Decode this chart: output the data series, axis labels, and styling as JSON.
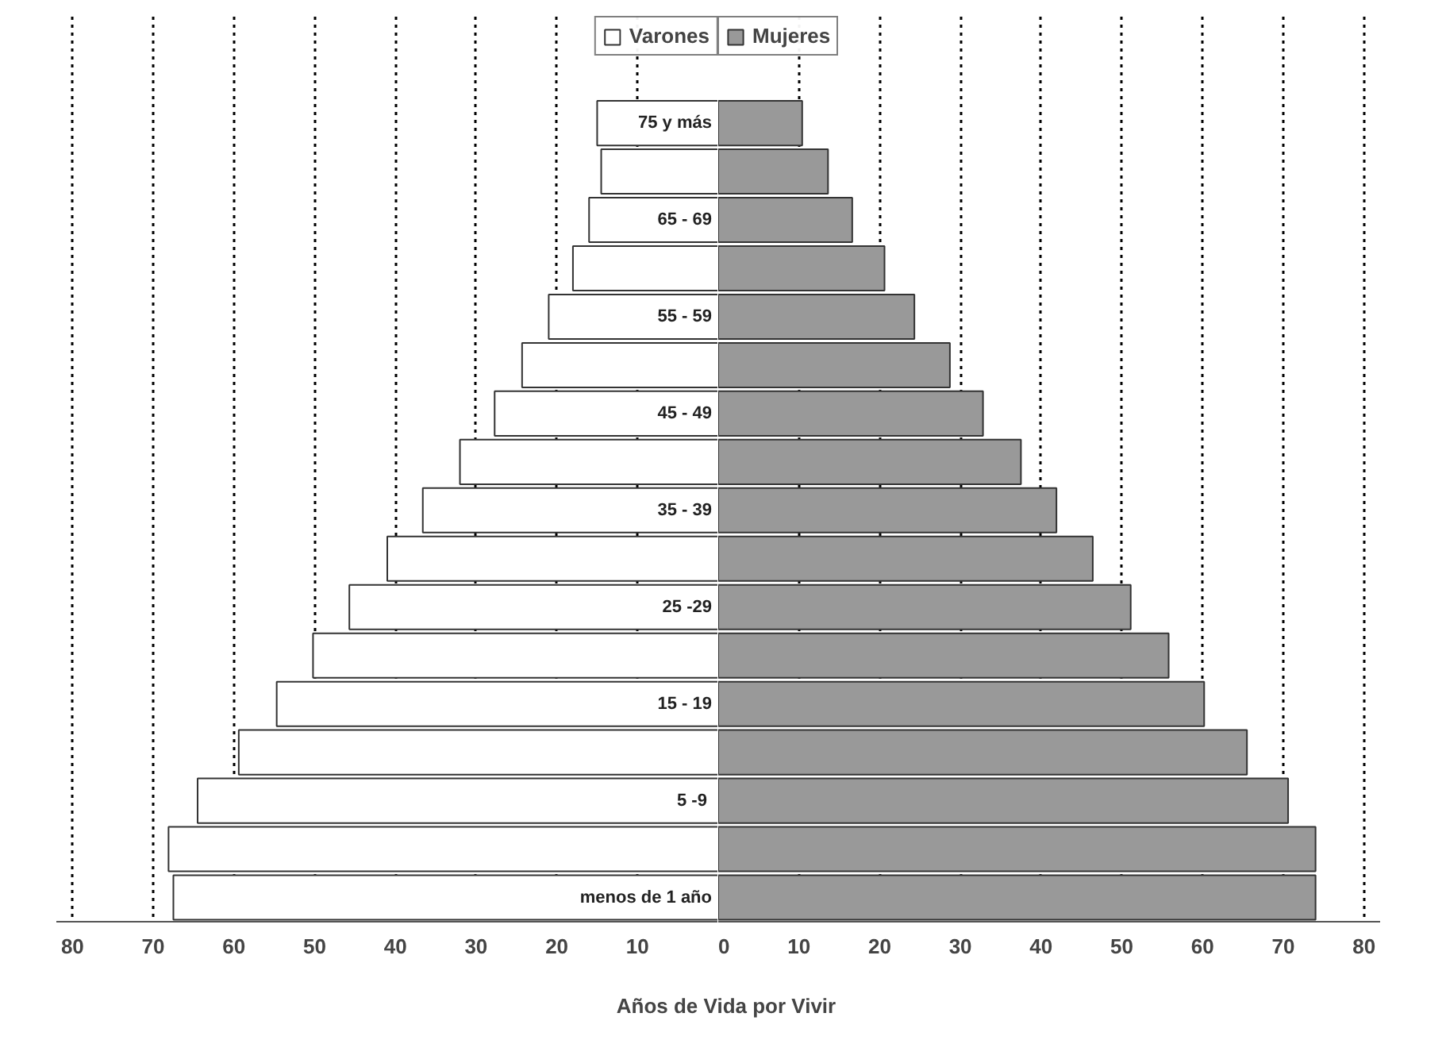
{
  "chart_data": [
    {
      "type": "bar",
      "orientation": "horizontal",
      "xlabel": "Años de Vida por Vivir",
      "categories": [
        "75 y más",
        null,
        "65 - 69",
        null,
        "55 - 59",
        null,
        "45 - 49",
        null,
        "35 - 39",
        null,
        "25 -29",
        null,
        "15 - 19",
        null,
        "5  -9",
        null,
        "menos de 1 año"
      ],
      "series": [
        {
          "name": "Varones",
          "color": "#ffffff",
          "values": [
            15,
            14.5,
            16,
            18,
            21,
            24.3,
            27.7,
            32,
            36.6,
            41,
            45.7,
            50.2,
            54.7,
            59.4,
            64.5,
            68.1,
            67.5
          ]
        }
      ],
      "xlim": [
        82,
        0
      ],
      "xticks": [
        80,
        70,
        60,
        50,
        40,
        30,
        20,
        10
      ],
      "grid": "x",
      "legend": "top right"
    },
    {
      "type": "bar",
      "orientation": "horizontal",
      "categories": [
        null,
        null,
        null,
        null,
        null,
        null,
        null,
        null,
        null,
        null,
        null,
        null,
        null,
        null,
        null,
        null,
        null
      ],
      "series": [
        {
          "name": "Mujeres",
          "color": "#999999",
          "values": [
            10.4,
            13.6,
            16.6,
            20.6,
            24.3,
            28.7,
            32.8,
            37.5,
            41.9,
            46.4,
            51.1,
            55.8,
            60.2,
            65.5,
            70.6,
            74,
            74
          ]
        }
      ],
      "xlim": [
        0,
        82
      ],
      "xticks": [
        0,
        10,
        20,
        30,
        40,
        50,
        60,
        70,
        80
      ],
      "tick_labels": "x",
      "grid": "x",
      "legend": "top left"
    }
  ]
}
